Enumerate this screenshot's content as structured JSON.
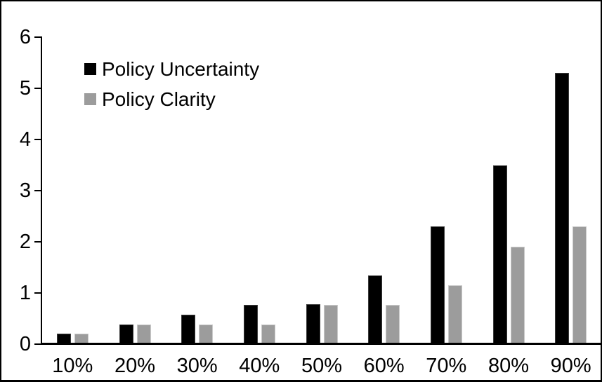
{
  "chart_data": {
    "type": "bar",
    "title": "",
    "xlabel": "",
    "ylabel": "",
    "categories": [
      "10%",
      "20%",
      "30%",
      "40%",
      "50%",
      "60%",
      "70%",
      "80%",
      "90%"
    ],
    "series": [
      {
        "name": "Policy Uncertainty",
        "color": "#000000",
        "values": [
          0.2,
          0.38,
          0.57,
          0.77,
          0.78,
          1.34,
          2.3,
          3.5,
          5.3
        ]
      },
      {
        "name": "Policy Clarity",
        "color": "#9c9c9c",
        "values": [
          0.2,
          0.38,
          0.38,
          0.38,
          0.77,
          0.77,
          1.15,
          1.9,
          2.3
        ]
      }
    ],
    "yticks": [
      0,
      1,
      2,
      3,
      4,
      5,
      6
    ],
    "ylim": [
      0,
      6
    ],
    "grid": false,
    "legend_position": "top-left-inside",
    "frame_color": "#000000",
    "background_color": "#ffffff"
  }
}
